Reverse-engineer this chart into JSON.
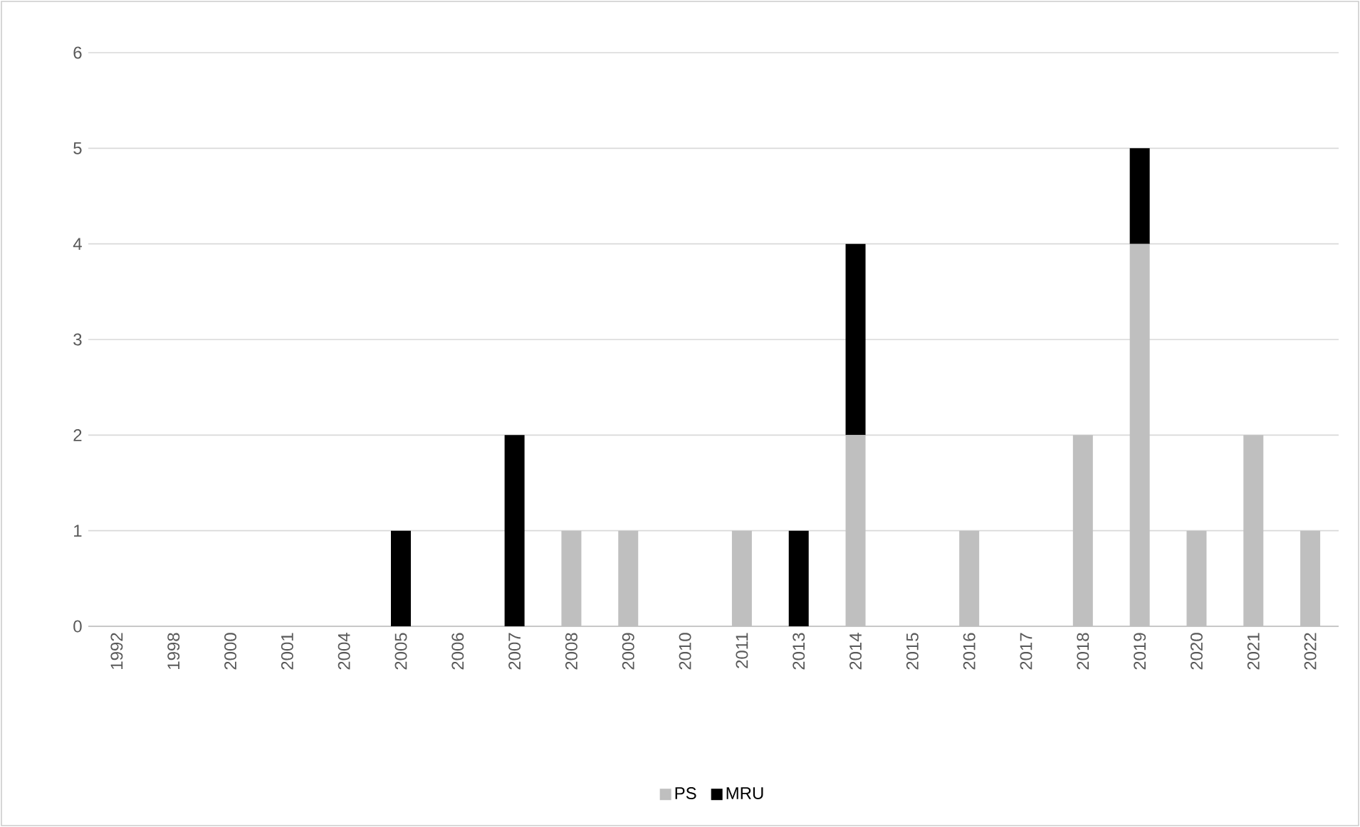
{
  "chart_data": {
    "type": "bar",
    "stacked": true,
    "categories": [
      "1992",
      "1998",
      "2000",
      "2001",
      "2004",
      "2005",
      "2006",
      "2007",
      "2008",
      "2009",
      "2010",
      "2011",
      "2013",
      "2014",
      "2015",
      "2016",
      "2017",
      "2018",
      "2019",
      "2020",
      "2021",
      "2022"
    ],
    "series": [
      {
        "name": "PS",
        "color": "#bfbfbf",
        "values": [
          0,
          0,
          0,
          0,
          0,
          0,
          0,
          0,
          1,
          1,
          0,
          1,
          0,
          2,
          0,
          1,
          0,
          2,
          4,
          1,
          2,
          1
        ]
      },
      {
        "name": "MRU",
        "color": "#000000",
        "values": [
          0,
          0,
          0,
          0,
          0,
          1,
          0,
          2,
          0,
          0,
          0,
          0,
          1,
          2,
          0,
          0,
          0,
          0,
          1,
          0,
          0,
          0
        ]
      }
    ],
    "ylim": [
      0,
      6
    ],
    "yticks": [
      0,
      1,
      2,
      3,
      4,
      5,
      6
    ],
    "grid": "y",
    "legend": "bottom"
  }
}
